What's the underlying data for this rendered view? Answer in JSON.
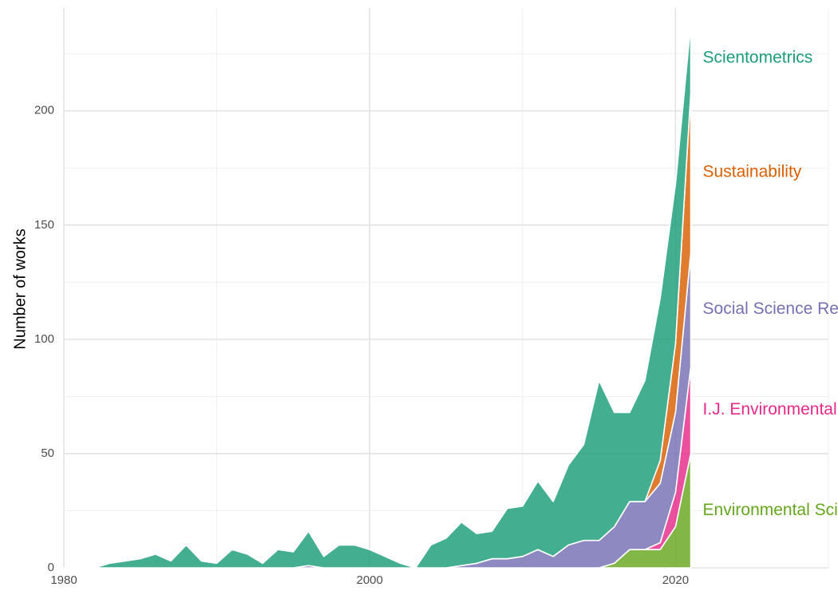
{
  "chart_data": {
    "type": "area",
    "stacked": true,
    "title": "",
    "xlabel": "",
    "ylabel": "Number of works",
    "xlim": [
      1980,
      2030
    ],
    "ylim": [
      0,
      245
    ],
    "x_ticks": [
      1980,
      2000,
      2020
    ],
    "y_ticks": [
      0,
      50,
      100,
      150,
      200
    ],
    "grid": true,
    "legend": "direct labels at right end of series",
    "x": [
      1980,
      1981,
      1982,
      1983,
      1984,
      1985,
      1986,
      1987,
      1988,
      1989,
      1990,
      1991,
      1992,
      1993,
      1994,
      1995,
      1996,
      1997,
      1998,
      1999,
      2000,
      2001,
      2002,
      2003,
      2004,
      2005,
      2006,
      2007,
      2008,
      2009,
      2010,
      2011,
      2012,
      2013,
      2014,
      2015,
      2016,
      2017,
      2018,
      2019,
      2020,
      2021
    ],
    "series": [
      {
        "name": "Environmental Science and Pollution Research",
        "label": "Environmental Science and Pollu",
        "color": "#66a61e",
        "values": [
          0,
          0,
          0,
          0,
          0,
          0,
          0,
          0,
          0,
          0,
          0,
          0,
          0,
          0,
          0,
          0,
          0,
          0,
          0,
          0,
          0,
          0,
          0,
          0,
          0,
          0,
          0,
          0,
          0,
          0,
          0,
          0,
          0,
          0,
          0,
          0,
          2,
          8,
          8,
          8,
          18,
          50
        ]
      },
      {
        "name": "I.J. Environmental Research and Public Health",
        "label": "I.J. Environmental Research and",
        "color": "#e7298a",
        "values": [
          0,
          0,
          0,
          0,
          0,
          0,
          0,
          0,
          0,
          0,
          0,
          0,
          0,
          0,
          0,
          0,
          0,
          0,
          0,
          0,
          0,
          0,
          0,
          0,
          0,
          0,
          0,
          0,
          0,
          0,
          0,
          0,
          0,
          0,
          0,
          0,
          0,
          0,
          0,
          3,
          15,
          38
        ]
      },
      {
        "name": "Social Science Research Network",
        "label": "Social Science Research Networ",
        "color": "#7570b3",
        "values": [
          0,
          0,
          0,
          0,
          0,
          0,
          0,
          0,
          0,
          0,
          0,
          0,
          0,
          0,
          0,
          0,
          1,
          0,
          0,
          0,
          0,
          0,
          0,
          0,
          0,
          0,
          1,
          2,
          4,
          4,
          5,
          8,
          5,
          10,
          12,
          12,
          16,
          21,
          21,
          26,
          35,
          50
        ]
      },
      {
        "name": "Sustainability",
        "label": "Sustainability",
        "color": "#d95f02",
        "values": [
          0,
          0,
          0,
          0,
          0,
          0,
          0,
          0,
          0,
          0,
          0,
          0,
          0,
          0,
          0,
          0,
          0,
          0,
          0,
          0,
          0,
          0,
          0,
          0,
          0,
          0,
          0,
          0,
          0,
          0,
          0,
          0,
          0,
          0,
          0,
          0,
          0,
          0,
          0,
          10,
          30,
          70
        ]
      },
      {
        "name": "Scientometrics",
        "label": "Scientometrics",
        "color": "#1b9e77",
        "values": [
          0,
          0,
          0,
          2,
          3,
          4,
          6,
          3,
          10,
          3,
          2,
          8,
          6,
          2,
          8,
          7,
          15,
          5,
          10,
          10,
          8,
          5,
          2,
          0,
          10,
          13,
          19,
          13,
          12,
          22,
          22,
          30,
          24,
          35,
          42,
          70,
          50,
          39,
          53,
          71,
          70,
          30
        ]
      }
    ]
  }
}
